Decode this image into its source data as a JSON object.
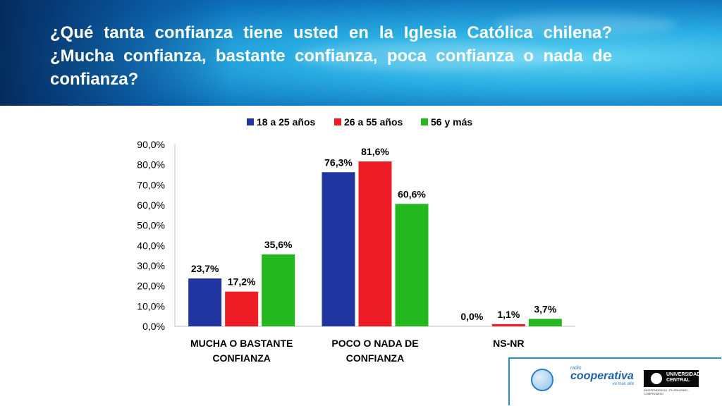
{
  "title": "¿Qué tanta confianza tiene usted en la Iglesia Católica chilena? ¿Mucha confianza, bastante confianza, poca confianza o nada de confianza?",
  "chart_data": {
    "type": "bar",
    "title": "",
    "xlabel": "",
    "ylabel": "",
    "categories": [
      [
        "MUCHA O BASTANTE",
        "CONFIANZA"
      ],
      [
        "POCO O NADA DE",
        "CONFIANZA"
      ],
      [
        "NS-NR"
      ]
    ],
    "series": [
      {
        "name": "18 a 25 años",
        "color": "#2135a0",
        "values": [
          23.7,
          76.3,
          0.0
        ],
        "labels": [
          "23,7%",
          "76,3%",
          "0,0%"
        ]
      },
      {
        "name": "26 a 55 años",
        "color": "#ee1c25",
        "values": [
          17.2,
          81.6,
          1.1
        ],
        "labels": [
          "17,2%",
          "81,6%",
          "1,1%"
        ]
      },
      {
        "name": "56 y más",
        "color": "#22b81e",
        "values": [
          35.6,
          60.6,
          3.7
        ],
        "labels": [
          "35,6%",
          "60,6%",
          "3,7%"
        ]
      }
    ],
    "ylim": [
      0,
      90
    ],
    "yticks": [
      0,
      10,
      20,
      30,
      40,
      50,
      60,
      70,
      80,
      90
    ],
    "ytick_labels": [
      "0,0%",
      "10,0%",
      "20,0%",
      "30,0%",
      "40,0%",
      "50,0%",
      "60,0%",
      "70,0%",
      "80,0%",
      "90,0%"
    ],
    "grid": false,
    "legend_position": "top"
  },
  "logos": {
    "cooperativa_small": "radio",
    "cooperativa_name": "cooperativa",
    "cooperativa_tag": "va más allá",
    "central_line1": "UNIVERSIDAD",
    "central_line2": "CENTRAL",
    "central_motto": "INDEPENDENCIA - PLURALISMO - COMPROMISO"
  }
}
